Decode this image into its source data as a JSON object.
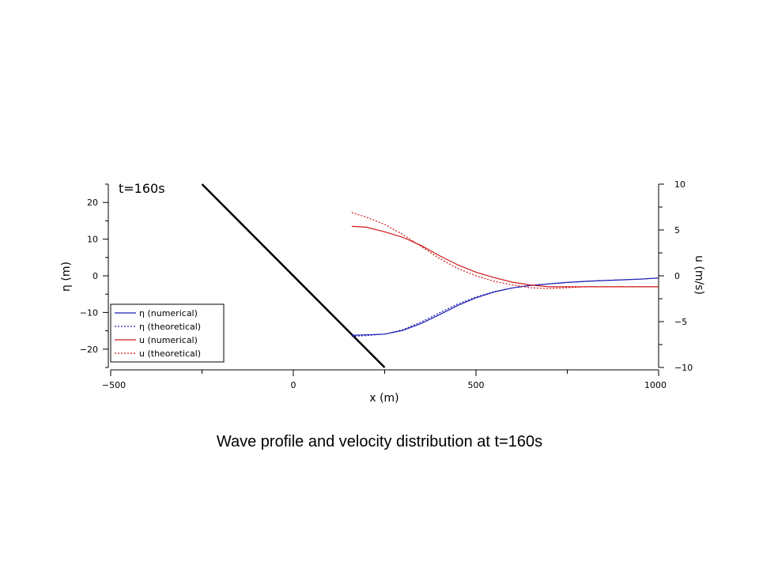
{
  "chart_data": {
    "type": "line",
    "annotation": "t=160s",
    "xlabel": "x (m)",
    "ylabel_left": "η (m)",
    "ylabel_right": "u (m/s)",
    "xlim": [
      -500,
      1000
    ],
    "ylim_left": [
      -25,
      25
    ],
    "ylim_right": [
      -10,
      10
    ],
    "x_ticks": [
      -500,
      0,
      500,
      1000
    ],
    "x_tick_labels": [
      "−500",
      "0",
      "500",
      "1000"
    ],
    "y_left_ticks": [
      20,
      10,
      0,
      -10,
      -20
    ],
    "y_left_tick_labels": [
      "20",
      "10",
      "0",
      "−10",
      "−20"
    ],
    "y_right_ticks": [
      10,
      5,
      0,
      -5,
      -10
    ],
    "y_right_tick_labels": [
      "10",
      "5",
      "0",
      "−5",
      "−10"
    ],
    "grid": false,
    "legend_position": "bottom-left",
    "bathymetry": {
      "x": [
        -250,
        250
      ],
      "y": [
        25,
        -25
      ]
    },
    "series": [
      {
        "name": "η (numerical)",
        "axis": "left",
        "color": "#1c1cb4",
        "dash": "solid",
        "x": [
          160,
          200,
          250,
          300,
          350,
          400,
          450,
          500,
          550,
          600,
          650,
          700,
          750,
          800,
          850,
          900,
          950,
          1000
        ],
        "y": [
          -16.2,
          -16.1,
          -15.9,
          -14.9,
          -13.0,
          -10.6,
          -8.1,
          -6.0,
          -4.4,
          -3.3,
          -2.6,
          -2.2,
          -1.8,
          -1.5,
          -1.3,
          -1.1,
          -0.9,
          -0.6
        ]
      },
      {
        "name": "η (theoretical)",
        "axis": "left",
        "color": "#1c1cb4",
        "dash": "dotted",
        "x": [
          160,
          200,
          250,
          300,
          350,
          400,
          450,
          500,
          550,
          600,
          650,
          700,
          750,
          800,
          850,
          900,
          950,
          1000
        ],
        "y": [
          -16.5,
          -16.3,
          -15.9,
          -14.7,
          -12.6,
          -10.1,
          -7.7,
          -5.8,
          -4.3,
          -3.3,
          -2.6,
          -2.2,
          -1.8,
          -1.5,
          -1.3,
          -1.1,
          -0.9,
          -0.6
        ]
      },
      {
        "name": "u (numerical)",
        "axis": "right",
        "color": "#d01818",
        "dash": "solid",
        "x": [
          160,
          200,
          250,
          300,
          350,
          400,
          450,
          500,
          550,
          600,
          650,
          700,
          750,
          800,
          850,
          900,
          950,
          1000
        ],
        "y": [
          5.4,
          5.3,
          4.8,
          4.2,
          3.3,
          2.2,
          1.2,
          0.4,
          -0.2,
          -0.7,
          -1.0,
          -1.2,
          -1.2,
          -1.2,
          -1.2,
          -1.2,
          -1.2,
          -1.2
        ]
      },
      {
        "name": "u (theoretical)",
        "axis": "right",
        "color": "#d01818",
        "dash": "dotted",
        "x": [
          160,
          200,
          250,
          300,
          350,
          400,
          450,
          500,
          550,
          600,
          650,
          700,
          750,
          800,
          850,
          900,
          950,
          1000
        ],
        "y": [
          6.9,
          6.4,
          5.6,
          4.5,
          3.2,
          1.9,
          0.8,
          0.0,
          -0.6,
          -1.0,
          -1.3,
          -1.4,
          -1.3,
          -1.2,
          -1.2,
          -1.2,
          -1.2,
          -1.2
        ]
      }
    ]
  },
  "caption": "Wave profile and velocity distribution at t=160s"
}
